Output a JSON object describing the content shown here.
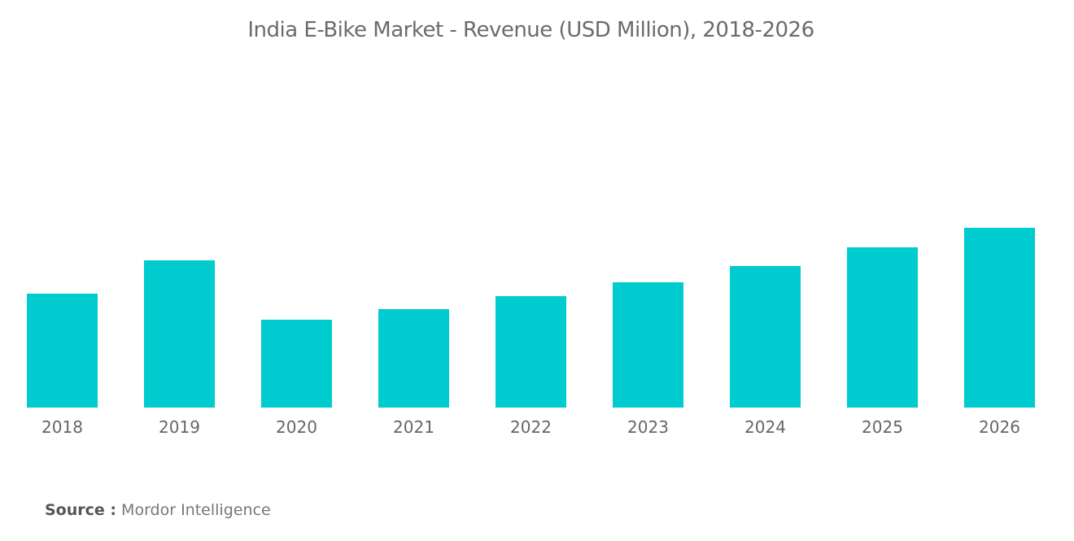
{
  "chart_data": {
    "type": "bar",
    "title": "India E-Bike Market - Revenue (USD Million),  2018-2026",
    "categories": [
      "2018",
      "2019",
      "2020",
      "2021",
      "2022",
      "2023",
      "2024",
      "2025",
      "2026"
    ],
    "values": [
      140,
      181,
      108,
      121,
      137,
      154,
      174,
      197,
      221
    ],
    "xlabel": "",
    "ylabel": "",
    "grid": false,
    "bar_color": "#00cccf"
  },
  "source": {
    "label": "Source :",
    "value": "Mordor Intelligence"
  }
}
